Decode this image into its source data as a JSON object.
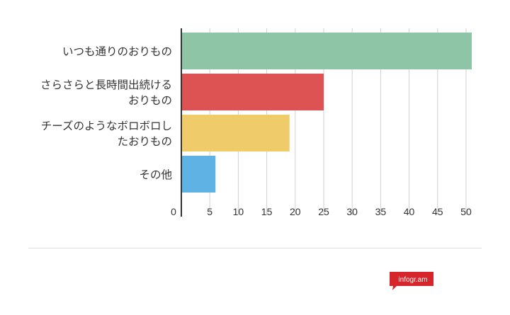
{
  "chart_data": {
    "type": "bar",
    "orientation": "horizontal",
    "categories": [
      [
        "いつも通りのおりもの"
      ],
      [
        "さらさらと長時間出続ける",
        "おりもの"
      ],
      [
        "チーズのようなボロボロし",
        "たおりもの"
      ],
      [
        "その他"
      ]
    ],
    "values": [
      51,
      25,
      19,
      6
    ],
    "colors": [
      "#8fc5a7",
      "#dd5353",
      "#efcb6a",
      "#5fb3e4"
    ],
    "x_ticks": [
      "0",
      "5",
      "10",
      "15",
      "20",
      "25",
      "30",
      "35",
      "40",
      "45",
      "50"
    ],
    "xlim": [
      0,
      51
    ],
    "grid": true
  },
  "branding": {
    "text": "infogr.am",
    "color": "#d7262b"
  }
}
